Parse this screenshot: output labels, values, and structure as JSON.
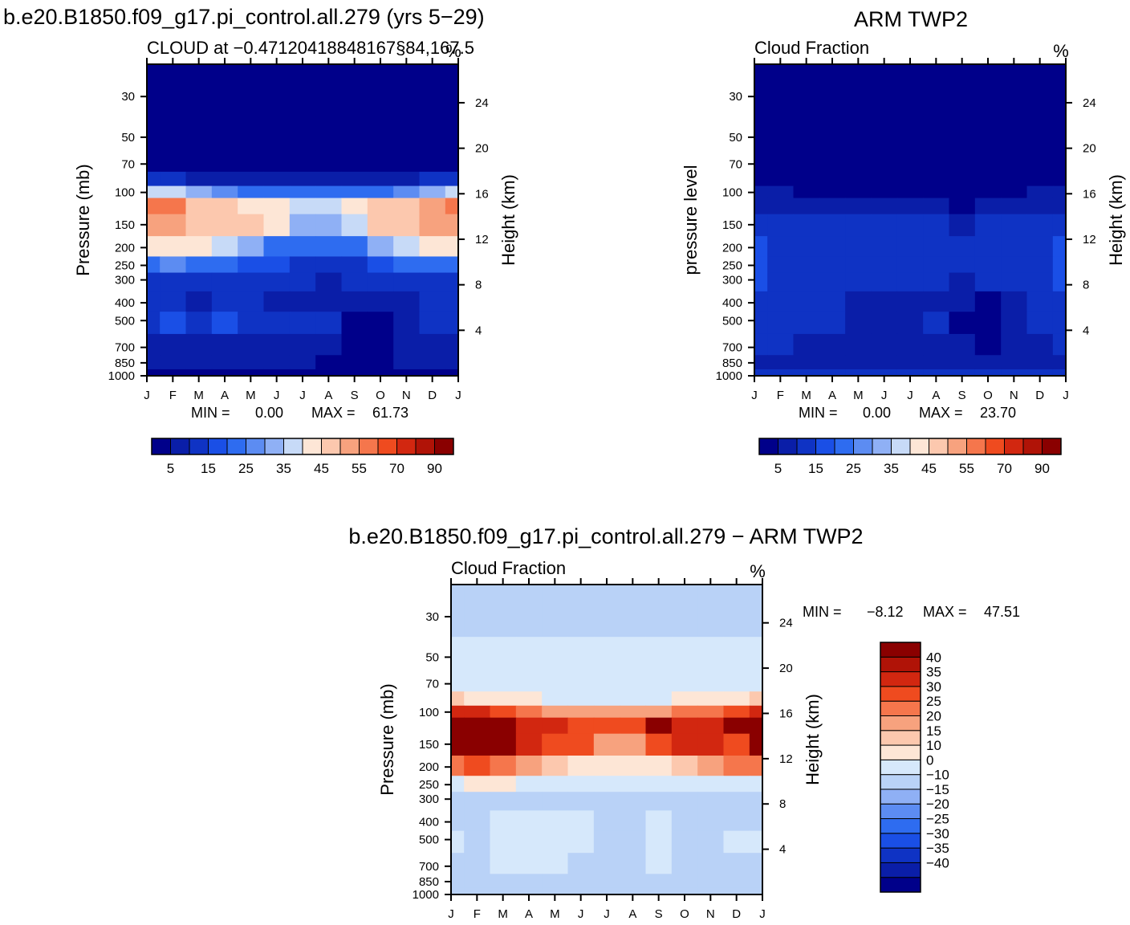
{
  "figure": {
    "title_left": "b.e20.B1850.f09_g17.pi_control.all.279 (yrs 5−29)",
    "title_right": "ARM TWP2",
    "title_bottom": "b.e20.B1850.f09_g17.pi_control.all.279 − ARM TWP2"
  },
  "chart_data": [
    {
      "type": "heatmap",
      "title": "CLOUD at −0.47120418848167§84,167.5",
      "units": "%",
      "xlabel": "",
      "ylabel": "Pressure (mb)",
      "ylabel_right": "Height (km)",
      "x": [
        "J",
        "F",
        "M",
        "A",
        "M",
        "J",
        "J",
        "A",
        "S",
        "O",
        "N",
        "D",
        "J"
      ],
      "y_pressure_ticks": [
        "30",
        "50",
        "70",
        "100",
        "150",
        "200",
        "250",
        "300",
        "400",
        "500",
        "700",
        "850",
        "1000"
      ],
      "y_height_ticks": [
        "24",
        "20",
        "16",
        "12",
        "8",
        "4"
      ],
      "ylim_mb": [
        20,
        1000
      ],
      "min_label": "MIN =",
      "min_value": "0.00",
      "max_label": "MAX =",
      "max_value": "61.73",
      "colorbar": {
        "orientation": "horizontal",
        "labels": [
          "5",
          "15",
          "25",
          "35",
          "45",
          "55",
          "70",
          "90"
        ],
        "levels": [
          0,
          5,
          10,
          15,
          20,
          25,
          30,
          35,
          40,
          45,
          50,
          55,
          60,
          70,
          80,
          90
        ],
        "colors": [
          "#00008a",
          "#0a1ea8",
          "#0f33c4",
          "#1a4fe6",
          "#2e6cf0",
          "#5c8cf2",
          "#8fb0f5",
          "#c7daf7",
          "#fde6d6",
          "#fcc8ae",
          "#f7a27e",
          "#f5764c",
          "#ef4b1f",
          "#d22710",
          "#b01307",
          "#8a0000"
        ]
      },
      "profile_levels_mb": [
        20,
        30,
        50,
        70,
        85,
        100,
        115,
        150,
        200,
        250,
        300,
        400,
        500,
        700,
        850,
        1000
      ],
      "values": [
        [
          0,
          0,
          0,
          0,
          0,
          0,
          0,
          0,
          0,
          0,
          0,
          0,
          0
        ],
        [
          0,
          0,
          0,
          0,
          0,
          0,
          0,
          0,
          0,
          0,
          0,
          0,
          0
        ],
        [
          0,
          0,
          0,
          0,
          0,
          0,
          0,
          0,
          0,
          0,
          0,
          0,
          0
        ],
        [
          4,
          3,
          1,
          1,
          0,
          0,
          0,
          0,
          0,
          0,
          1,
          2,
          4
        ],
        [
          12,
          10,
          8,
          6,
          6,
          5,
          5,
          5,
          5,
          6,
          8,
          10,
          12
        ],
        [
          38,
          35,
          30,
          26,
          24,
          22,
          20,
          20,
          22,
          24,
          28,
          32,
          38
        ],
        [
          58,
          55,
          48,
          45,
          44,
          42,
          38,
          38,
          42,
          46,
          48,
          52,
          58
        ],
        [
          54,
          52,
          48,
          46,
          45,
          40,
          33,
          30,
          38,
          45,
          48,
          50,
          54
        ],
        [
          42,
          44,
          40,
          36,
          30,
          24,
          22,
          20,
          24,
          30,
          36,
          40,
          42
        ],
        [
          24,
          25,
          22,
          20,
          18,
          16,
          14,
          13,
          14,
          18,
          20,
          22,
          24
        ],
        [
          14,
          14,
          13,
          12,
          12,
          11,
          10,
          9,
          10,
          11,
          12,
          13,
          14
        ],
        [
          12,
          10,
          9,
          11,
          10,
          8,
          9,
          8,
          5,
          5,
          8,
          10,
          12
        ],
        [
          14,
          15,
          11,
          16,
          14,
          12,
          12,
          10,
          4,
          3,
          8,
          12,
          14
        ],
        [
          9,
          9,
          8,
          9,
          8,
          7,
          6,
          5,
          3,
          2,
          6,
          8,
          9
        ],
        [
          7,
          6,
          6,
          6,
          5,
          5,
          5,
          4,
          3,
          3,
          5,
          6,
          7
        ],
        [
          3,
          3,
          3,
          3,
          3,
          3,
          3,
          3,
          3,
          3,
          3,
          3,
          3
        ]
      ]
    },
    {
      "type": "heatmap",
      "title": "Cloud Fraction",
      "units": "%",
      "xlabel": "",
      "ylabel": "pressure level",
      "ylabel_right": "Height (km)",
      "x": [
        "J",
        "F",
        "M",
        "A",
        "M",
        "J",
        "J",
        "A",
        "S",
        "O",
        "N",
        "D",
        "J"
      ],
      "y_pressure_ticks": [
        "30",
        "50",
        "70",
        "100",
        "150",
        "200",
        "250",
        "300",
        "400",
        "500",
        "700",
        "850",
        "1000"
      ],
      "y_height_ticks": [
        "24",
        "20",
        "16",
        "12",
        "8",
        "4"
      ],
      "ylim_mb": [
        20,
        1000
      ],
      "min_label": "MIN =",
      "min_value": "0.00",
      "max_label": "MAX =",
      "max_value": "23.70",
      "colorbar": {
        "orientation": "horizontal",
        "labels": [
          "5",
          "15",
          "25",
          "35",
          "45",
          "55",
          "70",
          "90"
        ],
        "levels": [
          0,
          5,
          10,
          15,
          20,
          25,
          30,
          35,
          40,
          45,
          50,
          55,
          60,
          70,
          80,
          90
        ],
        "colors": [
          "#00008a",
          "#0a1ea8",
          "#0f33c4",
          "#1a4fe6",
          "#2e6cf0",
          "#5c8cf2",
          "#8fb0f5",
          "#c7daf7",
          "#fde6d6",
          "#fcc8ae",
          "#f7a27e",
          "#f5764c",
          "#ef4b1f",
          "#d22710",
          "#b01307",
          "#8a0000"
        ]
      },
      "profile_levels_mb": [
        20,
        30,
        50,
        70,
        85,
        100,
        115,
        150,
        200,
        250,
        300,
        400,
        500,
        700,
        850,
        1000
      ],
      "values": [
        [
          0,
          0,
          0,
          0,
          0,
          0,
          0,
          0,
          0,
          0,
          0,
          0,
          0
        ],
        [
          0,
          0,
          0,
          0,
          0,
          0,
          0,
          0,
          0,
          0,
          0,
          0,
          0
        ],
        [
          0,
          0,
          0,
          0,
          0,
          0,
          0,
          0,
          0,
          0,
          0,
          0,
          0
        ],
        [
          0,
          0,
          0,
          0,
          0,
          0,
          0,
          0,
          0,
          0,
          0,
          0,
          0
        ],
        [
          3,
          2,
          1,
          1,
          1,
          0,
          0,
          0,
          0,
          1,
          2,
          3,
          3
        ],
        [
          6,
          5,
          4,
          3,
          3,
          2,
          2,
          2,
          2,
          3,
          4,
          5,
          6
        ],
        [
          8,
          7,
          6,
          6,
          5,
          5,
          5,
          5,
          4,
          6,
          7,
          8,
          8
        ],
        [
          12,
          10,
          11,
          12,
          10,
          10,
          10,
          10,
          8,
          10,
          12,
          12,
          12
        ],
        [
          17,
          14,
          12,
          12,
          12,
          14,
          12,
          11,
          11,
          12,
          14,
          14,
          17
        ],
        [
          18,
          14,
          13,
          12,
          12,
          13,
          12,
          11,
          11,
          12,
          12,
          13,
          18
        ],
        [
          16,
          13,
          12,
          11,
          10,
          11,
          10,
          10,
          9,
          10,
          11,
          12,
          16
        ],
        [
          12,
          12,
          10,
          11,
          9,
          8,
          8,
          7,
          5,
          4,
          7,
          10,
          12
        ],
        [
          13,
          12,
          10,
          11,
          8,
          9,
          8,
          10,
          4,
          3,
          7,
          10,
          13
        ],
        [
          11,
          10,
          8,
          9,
          5,
          7,
          5,
          8,
          5,
          4,
          7,
          9,
          11
        ],
        [
          8,
          8,
          7,
          7,
          6,
          7,
          6,
          7,
          6,
          6,
          7,
          8,
          8
        ],
        [
          12,
          12,
          12,
          12,
          12,
          12,
          12,
          12,
          12,
          12,
          12,
          12,
          12
        ]
      ]
    },
    {
      "type": "heatmap",
      "title": "Cloud Fraction",
      "units": "%",
      "xlabel": "",
      "ylabel": "Pressure (mb)",
      "ylabel_right": "Height (km)",
      "x": [
        "J",
        "F",
        "M",
        "A",
        "M",
        "J",
        "J",
        "A",
        "S",
        "O",
        "N",
        "D",
        "J"
      ],
      "y_pressure_ticks": [
        "30",
        "50",
        "70",
        "100",
        "150",
        "200",
        "250",
        "300",
        "400",
        "500",
        "700",
        "850",
        "1000"
      ],
      "y_height_ticks": [
        "24",
        "20",
        "16",
        "12",
        "8",
        "4"
      ],
      "ylim_mb": [
        20,
        1000
      ],
      "min_label": "MIN =",
      "min_value": "−8.12",
      "max_label": "MAX =",
      "max_value": "47.51",
      "colorbar": {
        "orientation": "vertical",
        "labels": [
          "40",
          "35",
          "30",
          "25",
          "20",
          "15",
          "10",
          "0",
          "−10",
          "−15",
          "−20",
          "−25",
          "−30",
          "−35",
          "−40"
        ],
        "levels": [
          -100,
          -40,
          -35,
          -30,
          -25,
          -20,
          -15,
          -10,
          0,
          10,
          15,
          20,
          25,
          30,
          35,
          40
        ],
        "colors": [
          "#00008a",
          "#0a1ea8",
          "#0f33c4",
          "#1a4fe6",
          "#2e6cf0",
          "#5c8cf2",
          "#8fb0f5",
          "#b9d2f7",
          "#d6e8fb",
          "#fde6d6",
          "#fcc8ae",
          "#f7a27e",
          "#f5764c",
          "#ef4b1f",
          "#d22710",
          "#b01307",
          "#8a0000"
        ]
      },
      "profile_levels_mb": [
        20,
        30,
        50,
        70,
        85,
        100,
        115,
        150,
        200,
        250,
        300,
        400,
        500,
        700,
        850,
        1000
      ],
      "values": [
        [
          -1,
          -1,
          -1,
          -1,
          -1,
          -1,
          -1,
          -1,
          -1,
          -1,
          -1,
          -1,
          -1
        ],
        [
          -1,
          -1,
          -1,
          -1,
          -1,
          -1,
          -1,
          -1,
          -1,
          -1,
          -1,
          -1,
          -1
        ],
        [
          3,
          3,
          3,
          3,
          3,
          3,
          3,
          3,
          3,
          3,
          3,
          3,
          3
        ],
        [
          5,
          5,
          4,
          4,
          4,
          4,
          4,
          4,
          4,
          4,
          4,
          5,
          5
        ],
        [
          16,
          14,
          12,
          10,
          9,
          9,
          9,
          9,
          9,
          10,
          11,
          14,
          16
        ],
        [
          38,
          36,
          32,
          28,
          24,
          22,
          20,
          22,
          24,
          25,
          28,
          32,
          38
        ],
        [
          44,
          45,
          43,
          38,
          36,
          33,
          30,
          34,
          42,
          36,
          36,
          40,
          44
        ],
        [
          40,
          43,
          43,
          36,
          34,
          30,
          24,
          22,
          30,
          36,
          37,
          34,
          40
        ],
        [
          26,
          30,
          28,
          24,
          18,
          14,
          13,
          12,
          14,
          18,
          22,
          26,
          26
        ],
        [
          8,
          12,
          10,
          8,
          7,
          6,
          5,
          4,
          5,
          6,
          6,
          7,
          8
        ],
        [
          -1,
          -1,
          -1,
          -1,
          -1,
          -1,
          -1,
          -1,
          -1,
          -1,
          -1,
          -1,
          -1
        ],
        [
          -1,
          -1,
          3,
          4,
          4,
          3,
          -1,
          -1,
          3,
          -1,
          -1,
          -1,
          -1
        ],
        [
          3,
          -1,
          3,
          4,
          4,
          4,
          -1,
          -1,
          3,
          -1,
          -1,
          3,
          3
        ],
        [
          -1,
          -1,
          3,
          3,
          3,
          -1,
          -1,
          -1,
          3,
          -1,
          -1,
          -1,
          -1
        ],
        [
          -1,
          -1,
          -1,
          -1,
          -1,
          -1,
          -1,
          -1,
          -1,
          -1,
          -1,
          -1,
          -1
        ],
        [
          -1,
          -1,
          -1,
          -1,
          -1,
          -1,
          -1,
          -1,
          -1,
          -1,
          -1,
          -1,
          -1
        ]
      ]
    }
  ]
}
